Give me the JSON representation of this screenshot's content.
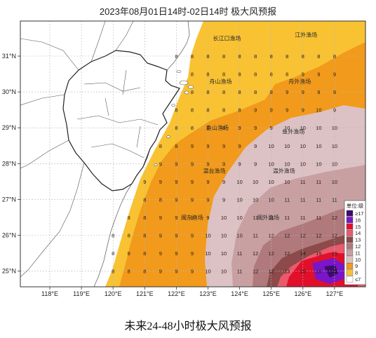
{
  "title": "2023年08月01日14时-02日14时 极大风预报",
  "caption": "未来24-48小时极大风预报",
  "axes": {
    "lon_ticks": [
      "118°E",
      "119°E",
      "120°E",
      "121°E",
      "122°E",
      "123°E",
      "124°E",
      "125°E",
      "126°E",
      "127°E"
    ],
    "lat_ticks": [
      "31°N",
      "30°N",
      "29°N",
      "28°N",
      "27°N",
      "26°N",
      "25°N"
    ]
  },
  "fishing_zones": [
    "长江口渔场",
    "江外渔场",
    "舟山渔场",
    "舟外渔场",
    "鱼山渔场",
    "鱼外渔场",
    "温台渔场",
    "温外渔场",
    "闽东渔场",
    "闽外渔场"
  ],
  "legend": {
    "title": "单位:级",
    "levels": [
      {
        "label": "≥17",
        "color": "#3d0a6e"
      },
      {
        "label": "16",
        "color": "#7a16c8"
      },
      {
        "label": "15",
        "color": "#e0102b"
      },
      {
        "label": "14",
        "color": "#ea5a6d"
      },
      {
        "label": "13",
        "color": "#8c4a4a"
      },
      {
        "label": "12",
        "color": "#b0797b"
      },
      {
        "label": "11",
        "color": "#c9a0a2"
      },
      {
        "label": "10",
        "color": "#dcc2c4"
      },
      {
        "label": "9",
        "color": "#f29a1b"
      },
      {
        "label": "8",
        "color": "#f8c233"
      },
      {
        "label": "≤7",
        "color": "#ffffff"
      }
    ]
  },
  "grid_values": [
    {
      "lat": 31,
      "lon": [
        122,
        122.5,
        123,
        123.5,
        124,
        124.5,
        125,
        125.5,
        126,
        126.5,
        127
      ],
      "v": [
        8,
        8,
        8,
        8,
        8,
        8,
        8,
        8,
        8,
        8,
        8
      ]
    },
    {
      "lat": 30.5,
      "lon": [
        122.5,
        123,
        123.5,
        124,
        124.5,
        125,
        125.5,
        126,
        126.5,
        127
      ],
      "v": [
        8,
        8,
        8,
        8,
        8,
        8,
        8,
        9,
        9,
        9
      ]
    },
    {
      "lat": 30,
      "lon": [
        122.5,
        123,
        123.5,
        124,
        124.5,
        125,
        125.5,
        126,
        126.5,
        127
      ],
      "v": [
        8,
        8,
        8,
        8,
        8,
        9,
        9,
        9,
        9,
        9
      ]
    },
    {
      "lat": 29.5,
      "lon": [
        122,
        122.5,
        123,
        123.5,
        124,
        124.5,
        125,
        125.5,
        126,
        126.5,
        127
      ],
      "v": [
        8,
        8,
        8,
        8,
        8,
        9,
        9,
        9,
        9,
        10,
        9
      ]
    },
    {
      "lat": 29,
      "lon": [
        122,
        122.5,
        123,
        123.5,
        124,
        124.5,
        125,
        125.5,
        126,
        126.5,
        127
      ],
      "v": [
        8,
        8,
        8,
        8,
        9,
        9,
        9,
        10,
        10,
        10,
        10
      ]
    },
    {
      "lat": 28.5,
      "lon": [
        121.5,
        122,
        122.5,
        123,
        123.5,
        124,
        124.5,
        125,
        125.5,
        126,
        126.5,
        127
      ],
      "v": [
        8,
        8,
        9,
        9,
        9,
        9,
        9,
        10,
        10,
        10,
        10,
        10
      ]
    },
    {
      "lat": 28,
      "lon": [
        121.5,
        122,
        122.5,
        123,
        123.5,
        124,
        124.5,
        125,
        125.5,
        126,
        126.5,
        127
      ],
      "v": [
        9,
        9,
        9,
        9,
        9,
        9,
        9,
        10,
        10,
        10,
        10,
        10
      ]
    },
    {
      "lat": 27.5,
      "lon": [
        121,
        121.5,
        122,
        122.5,
        123,
        123.5,
        124,
        124.5,
        125,
        125.5,
        126,
        126.5,
        127
      ],
      "v": [
        9,
        9,
        9,
        9,
        9,
        9,
        10,
        10,
        10,
        10,
        11,
        11,
        10
      ]
    },
    {
      "lat": 27,
      "lon": [
        121,
        121.5,
        122,
        122.5,
        123,
        123.5,
        124,
        124.5,
        125,
        125.5,
        126,
        126.5,
        127
      ],
      "v": [
        8,
        8,
        9,
        9,
        9,
        9,
        10,
        10,
        10,
        11,
        11,
        11,
        11
      ]
    },
    {
      "lat": 26.5,
      "lon": [
        120.5,
        121,
        121.5,
        122,
        122.5,
        123,
        123.5,
        124,
        124.5,
        125,
        125.5,
        126,
        126.5,
        127
      ],
      "v": [
        8,
        8,
        9,
        9,
        9,
        9,
        10,
        10,
        11,
        11,
        11,
        11,
        11,
        12
      ]
    },
    {
      "lat": 26,
      "lon": [
        120,
        120.5,
        121,
        121.5,
        122,
        122.5,
        123,
        123.5,
        124,
        124.5,
        125,
        125.5,
        126,
        126.5,
        127
      ],
      "v": [
        8,
        8,
        8,
        9,
        9,
        9,
        10,
        10,
        10,
        11,
        12,
        12,
        12,
        12,
        12
      ]
    },
    {
      "lat": 25.5,
      "lon": [
        120,
        120.5,
        121,
        121.5,
        122,
        122.5,
        123,
        123.5,
        124,
        124.5,
        125,
        125.5,
        126,
        126.5,
        127
      ],
      "v": [
        8,
        8,
        8,
        9,
        9,
        9,
        10,
        10,
        11,
        12,
        12,
        12,
        14,
        15,
        15
      ]
    },
    {
      "lat": 25,
      "lon": [
        120,
        120.5,
        121,
        121.5,
        122,
        122.5,
        123,
        123.5,
        124,
        124.5,
        125,
        125.5,
        126,
        126.5,
        127
      ],
      "v": [
        8,
        8,
        8,
        9,
        9,
        9,
        10,
        10,
        11,
        12,
        12,
        13,
        15,
        16,
        15
      ]
    }
  ]
}
